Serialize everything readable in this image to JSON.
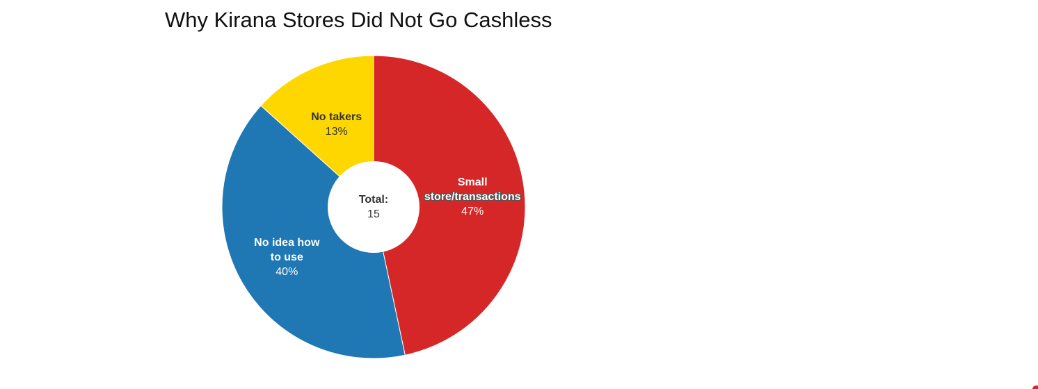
{
  "chart_data": {
    "type": "pie",
    "title": "Why Kirana Stores Did Not Go Cashless",
    "donut": true,
    "center_label": {
      "title": "Total:",
      "value": "15"
    },
    "slices": [
      {
        "label_lines": [
          "Small",
          "store/transactions"
        ],
        "value": 7,
        "percent_label": "47%",
        "color": "#d62728"
      },
      {
        "label_lines": [
          "No idea how",
          "to use"
        ],
        "value": 6,
        "percent_label": "40%",
        "color": "#1f77b4"
      },
      {
        "label_lines": [
          "No takers"
        ],
        "value": 2,
        "percent_label": "13%",
        "color": "#ffd700"
      }
    ],
    "legend": "none"
  }
}
